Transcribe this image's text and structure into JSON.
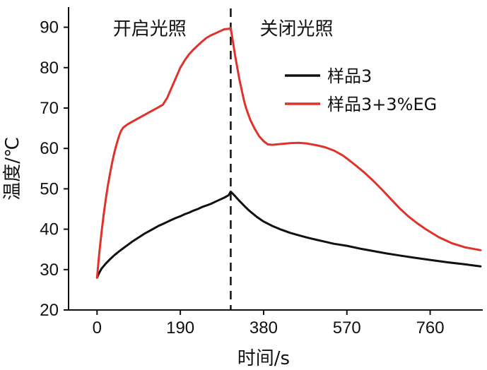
{
  "chart_data": {
    "type": "line",
    "title": "",
    "xlabel": "时间/s",
    "ylabel": "温度/℃",
    "xlim": [
      -65,
      880
    ],
    "ylim": [
      20,
      95
    ],
    "xticks": [
      0,
      190,
      380,
      570,
      760
    ],
    "xtick_labels": [
      "0",
      "190",
      "380",
      "570",
      "760"
    ],
    "yticks": [
      20,
      30,
      40,
      50,
      60,
      70,
      80,
      90
    ],
    "ytick_labels": [
      "20",
      "30",
      "40",
      "50",
      "60",
      "70",
      "80",
      "90"
    ],
    "grid": false,
    "legend_position": "upper-right",
    "divider_x": 305,
    "annotations": [
      {
        "text": "开启光照",
        "x": 120,
        "y": 90
      },
      {
        "text": "关闭光照",
        "x": 455,
        "y": 90
      }
    ],
    "series": [
      {
        "name": "样品3",
        "color": "#111111",
        "x": [
          0,
          5,
          10,
          20,
          30,
          40,
          50,
          60,
          70,
          80,
          90,
          100,
          110,
          120,
          130,
          140,
          150,
          160,
          170,
          180,
          190,
          200,
          210,
          220,
          230,
          240,
          250,
          260,
          270,
          280,
          290,
          300,
          305,
          315,
          325,
          335,
          345,
          355,
          365,
          380,
          400,
          420,
          440,
          460,
          480,
          500,
          520,
          540,
          570,
          600,
          630,
          660,
          690,
          720,
          760,
          800,
          840,
          875
        ],
        "values": [
          28.0,
          29.2,
          30.2,
          31.5,
          32.6,
          33.6,
          34.5,
          35.3,
          36.1,
          36.9,
          37.6,
          38.3,
          39.0,
          39.6,
          40.2,
          40.8,
          41.3,
          41.8,
          42.3,
          42.8,
          43.2,
          43.7,
          44.1,
          44.6,
          45.0,
          45.5,
          45.9,
          46.3,
          46.8,
          47.3,
          47.8,
          48.4,
          49.3,
          48.2,
          47.0,
          45.9,
          44.8,
          43.9,
          43.0,
          41.9,
          40.8,
          39.9,
          39.1,
          38.5,
          37.9,
          37.4,
          36.9,
          36.4,
          35.9,
          35.2,
          34.6,
          34.0,
          33.5,
          33.0,
          32.4,
          31.8,
          31.3,
          30.8
        ]
      },
      {
        "name": "样品3+3%EG",
        "color": "#e0322b",
        "x": [
          0,
          5,
          10,
          15,
          20,
          25,
          30,
          35,
          40,
          45,
          50,
          55,
          60,
          70,
          80,
          90,
          100,
          110,
          120,
          130,
          140,
          150,
          160,
          170,
          180,
          190,
          200,
          210,
          220,
          230,
          240,
          250,
          260,
          270,
          280,
          290,
          300,
          305,
          310,
          315,
          320,
          325,
          330,
          335,
          340,
          350,
          360,
          370,
          380,
          390,
          400,
          410,
          420,
          440,
          460,
          480,
          500,
          520,
          540,
          560,
          570,
          590,
          610,
          630,
          650,
          670,
          690,
          710,
          730,
          750,
          780,
          810,
          840,
          875
        ],
        "values": [
          28.0,
          34.0,
          39.0,
          43.5,
          47.5,
          51.0,
          54.0,
          56.8,
          59.2,
          61.2,
          63.0,
          64.4,
          65.2,
          66.0,
          66.6,
          67.2,
          67.8,
          68.4,
          69.0,
          69.6,
          70.2,
          70.8,
          72.5,
          75.0,
          77.5,
          80.0,
          81.8,
          83.3,
          84.5,
          85.5,
          86.5,
          87.4,
          88.0,
          88.5,
          89.0,
          89.5,
          89.6,
          89.8,
          86.5,
          83.0,
          80.0,
          77.0,
          74.5,
          72.0,
          70.0,
          67.0,
          64.8,
          63.0,
          61.8,
          61.0,
          60.9,
          61.0,
          61.1,
          61.3,
          61.4,
          61.2,
          60.8,
          60.3,
          59.5,
          58.3,
          57.5,
          55.8,
          54.0,
          52.0,
          49.8,
          47.5,
          45.2,
          43.2,
          41.5,
          40.0,
          38.0,
          36.5,
          35.5,
          34.8
        ]
      }
    ]
  }
}
